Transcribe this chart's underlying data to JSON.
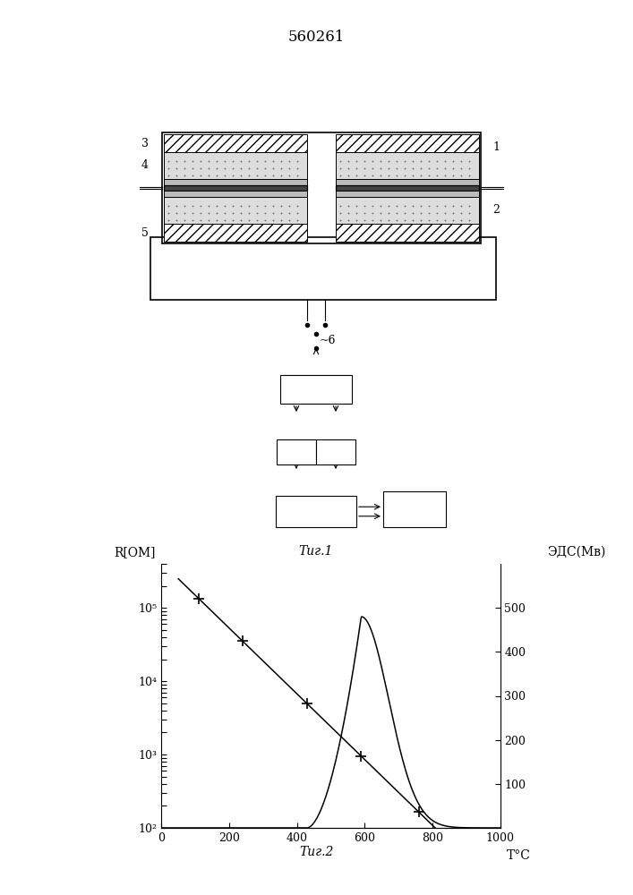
{
  "patent_number": "560261",
  "fig1_label": "Τиг.1",
  "fig2_label": "Τиг.2",
  "ylabel_left": "R[ОМ]",
  "ylabel_right": "ЭДС(Мв)",
  "xlabel": "T°C",
  "background_color": "#ffffff"
}
